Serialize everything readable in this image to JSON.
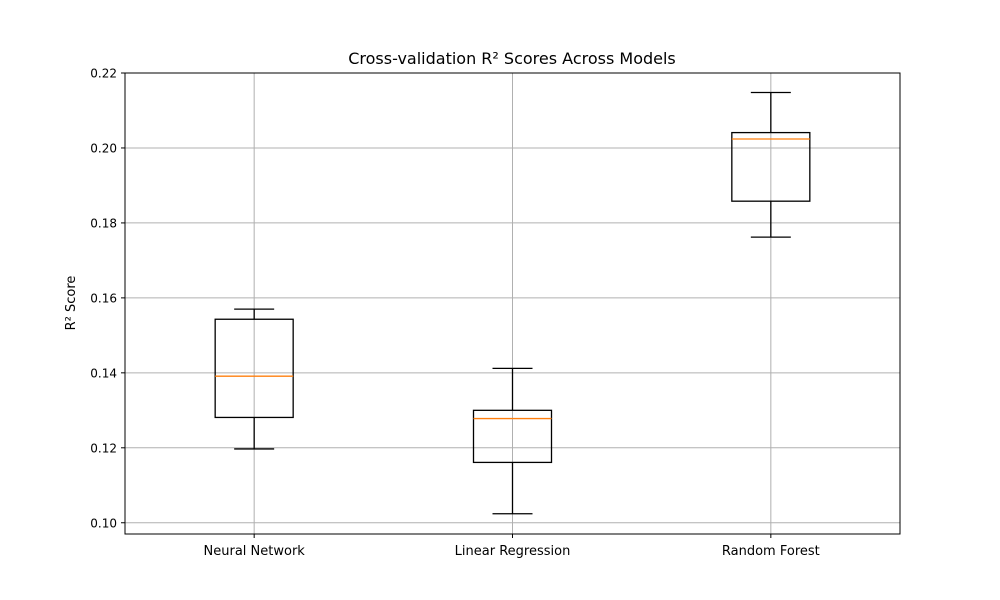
{
  "chart_data": {
    "type": "box",
    "title": "Cross-validation R² Scores Across Models",
    "xlabel": "",
    "ylabel": "R² Score",
    "ylim": [
      0.097,
      0.22
    ],
    "yticks": [
      "0.10",
      "0.12",
      "0.14",
      "0.16",
      "0.18",
      "0.20",
      "0.22"
    ],
    "grid": true,
    "categories": [
      "Neural Network",
      "Linear Regression",
      "Random Forest"
    ],
    "boxes": [
      {
        "category": "Neural Network",
        "whisker_low": 0.1197,
        "q1": 0.1281,
        "median": 0.1391,
        "q3": 0.1543,
        "whisker_high": 0.157
      },
      {
        "category": "Linear Regression",
        "whisker_low": 0.1024,
        "q1": 0.1161,
        "median": 0.1278,
        "q3": 0.13,
        "whisker_high": 0.1412
      },
      {
        "category": "Random Forest",
        "whisker_low": 0.1762,
        "q1": 0.1858,
        "median": 0.2024,
        "q3": 0.2041,
        "whisker_high": 0.2148
      }
    ],
    "colors": {
      "box": "#000000",
      "median": "#ff7f0e",
      "grid": "#b0b0b0"
    }
  }
}
